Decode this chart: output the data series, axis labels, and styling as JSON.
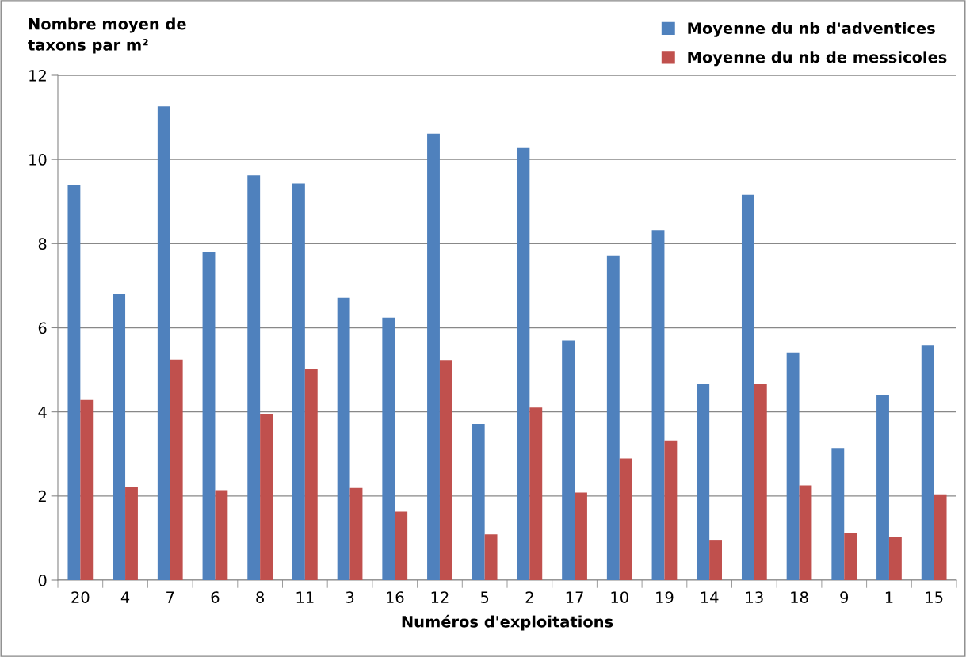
{
  "chart_data": {
    "type": "bar",
    "xlabel": "Numéros d'exploitations",
    "ylabel": "Nombre moyen de\ntaxons par m²",
    "categories": [
      "20",
      "4",
      "7",
      "6",
      "8",
      "11",
      "3",
      "16",
      "12",
      "5",
      "2",
      "17",
      "10",
      "19",
      "14",
      "13",
      "18",
      "9",
      "1",
      "15"
    ],
    "series": [
      {
        "name": "Moyenne du nb d'adventices",
        "color": "#4f81bd",
        "values": [
          9.39,
          6.8,
          11.26,
          7.8,
          9.62,
          9.43,
          6.71,
          6.24,
          10.61,
          3.71,
          10.27,
          5.7,
          7.71,
          8.32,
          4.67,
          9.16,
          5.41,
          3.14,
          4.4,
          5.59
        ]
      },
      {
        "name": "Moyenne du nb de messicoles",
        "color": "#c0504d",
        "values": [
          4.28,
          2.21,
          5.24,
          2.14,
          3.94,
          5.03,
          2.19,
          1.63,
          5.23,
          1.09,
          4.1,
          2.08,
          2.89,
          3.32,
          0.94,
          4.67,
          2.25,
          1.13,
          1.02,
          2.04
        ]
      }
    ],
    "ylim": [
      0,
      12
    ],
    "yticks": [
      0,
      2,
      4,
      6,
      8,
      10,
      12
    ],
    "grid": "y",
    "legend": "top right"
  }
}
